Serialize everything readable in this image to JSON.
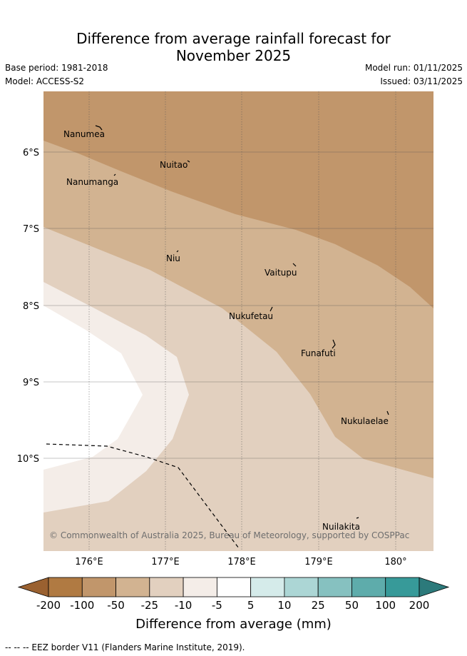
{
  "title": {
    "line1": "Difference from average rainfall forecast for",
    "line2": "November 2025"
  },
  "meta": {
    "base_period": "Base period: 1981-2018",
    "model": "Model: ACCESS-S2",
    "model_run": "Model run: 01/11/2025",
    "issued": "Issued: 03/11/2025"
  },
  "map": {
    "lat_labels": [
      "6°S",
      "7°S",
      "8°S",
      "9°S",
      "10°S"
    ],
    "lon_labels": [
      "176°E",
      "177°E",
      "178°E",
      "179°E",
      "180°"
    ],
    "places": [
      {
        "name": "Nanumea",
        "icon": "island-marker-icon"
      },
      {
        "name": "Nuitao",
        "icon": "island-marker-icon"
      },
      {
        "name": "Nanumanga",
        "icon": "island-marker-icon"
      },
      {
        "name": "Niu",
        "icon": "island-marker-icon"
      },
      {
        "name": "Vaitupu",
        "icon": "island-marker-icon"
      },
      {
        "name": "Nukufetau",
        "icon": "island-marker-icon"
      },
      {
        "name": "Funafuti",
        "icon": "island-marker-icon"
      },
      {
        "name": "Nukulaelae",
        "icon": "island-marker-icon"
      },
      {
        "name": "Nuilakita",
        "icon": "island-marker-icon"
      }
    ],
    "copyright": "© Commonwealth of Australia 2025, Bureau of Meteorology, supported by COSPPac"
  },
  "colorbar": {
    "ticks": [
      "-200",
      "-100",
      "-50",
      "-25",
      "-10",
      "-5",
      "5",
      "10",
      "25",
      "50",
      "100",
      "200"
    ],
    "colors": [
      "#9a6130",
      "#b07a42",
      "#c1966b",
      "#d2b391",
      "#e2d0bf",
      "#f4ede8",
      "#ffffff",
      "#d5ebea",
      "#acd6d5",
      "#86c1c0",
      "#5eacab",
      "#379a99",
      "#2c7a7b"
    ],
    "label": "Difference from average (mm)"
  },
  "footer": "-- -- -- EEZ border V11 (Flanders Marine Institute, 2019)."
}
